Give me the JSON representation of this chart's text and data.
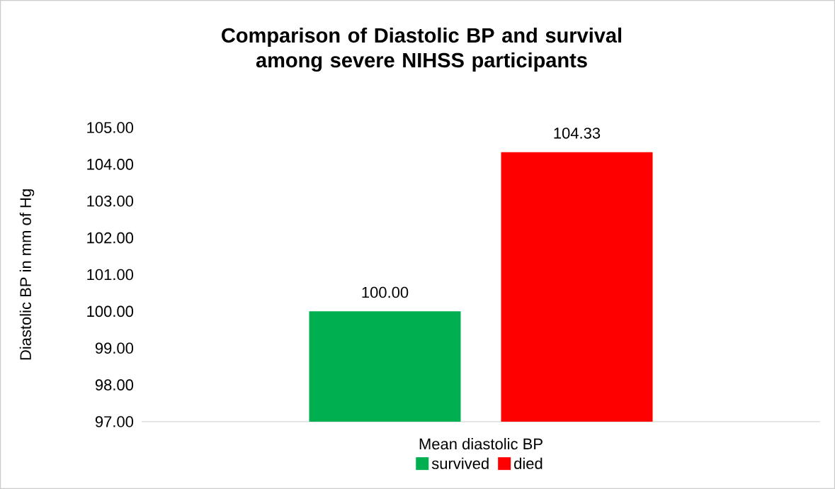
{
  "chart_data": {
    "type": "bar",
    "title": "Comparison of Diastolic BP and survival among severe NIHSS participants",
    "ylabel": "Diastolic BP in mm of Hg",
    "categories": [
      "Mean diastolic BP"
    ],
    "series": [
      {
        "name": "survived",
        "color": "#00b050",
        "values": [
          100.0
        ],
        "value_labels": [
          "100.00"
        ]
      },
      {
        "name": "died",
        "color": "#ff0000",
        "values": [
          104.33
        ],
        "value_labels": [
          "104.33"
        ]
      }
    ],
    "ylim": [
      97,
      105
    ],
    "yticks": [
      {
        "value": 97,
        "label": "97.00"
      },
      {
        "value": 98,
        "label": "98.00"
      },
      {
        "value": 99,
        "label": "99.00"
      },
      {
        "value": 100,
        "label": "100.00"
      },
      {
        "value": 101,
        "label": "101.00"
      },
      {
        "value": 102,
        "label": "102.00"
      },
      {
        "value": 103,
        "label": "103.00"
      },
      {
        "value": 104,
        "label": "104.00"
      },
      {
        "value": 105,
        "label": "105.00"
      }
    ],
    "legend": "bottom"
  }
}
